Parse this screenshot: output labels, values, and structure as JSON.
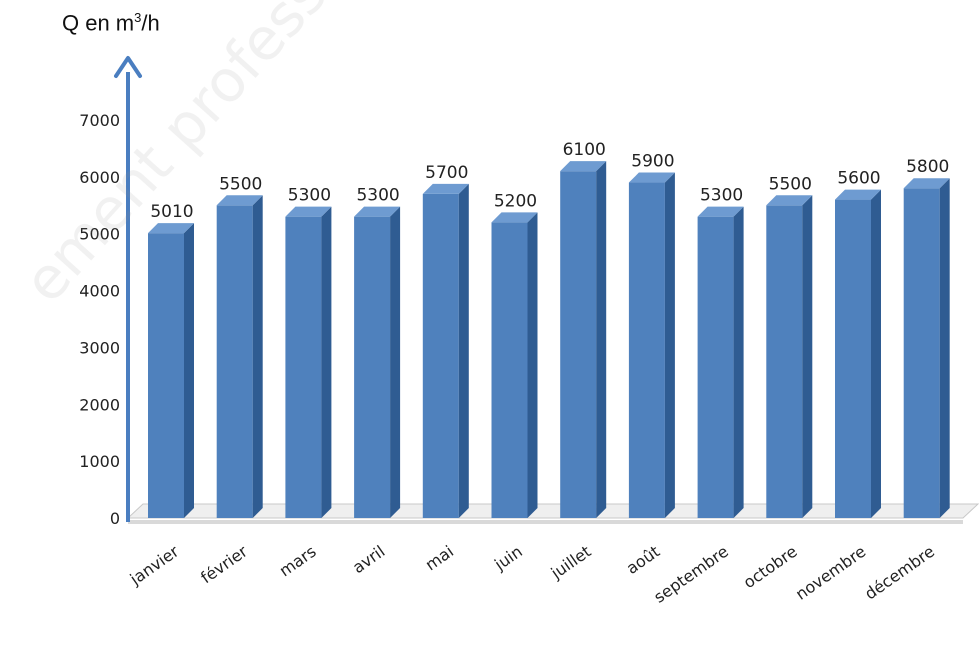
{
  "chart_data": {
    "type": "bar",
    "title": "",
    "ylabel": {
      "main": "Q en m",
      "sup": "3",
      "tail": "/h"
    },
    "xlabel": "",
    "ylim": [
      0,
      7000
    ],
    "yticks": [
      0,
      1000,
      2000,
      3000,
      4000,
      5000,
      6000,
      7000
    ],
    "categories": [
      "janvier",
      "février",
      "mars",
      "avril",
      "mai",
      "juin",
      "juillet",
      "août",
      "septembre",
      "octobre",
      "novembre",
      "décembre"
    ],
    "values": [
      5010,
      5500,
      5300,
      5300,
      5700,
      5200,
      6100,
      5900,
      5300,
      5500,
      5600,
      5800
    ],
    "data_labels": [
      "5010",
      "5500",
      "5300",
      "5300",
      "5700",
      "5200",
      "6100",
      "5900",
      "5300",
      "5500",
      "5600",
      "5800"
    ],
    "style": "3d-column",
    "grid": false,
    "legend": "none",
    "colors": {
      "bar_front": "#4F81BD",
      "bar_side": "#2F5C92",
      "bar_top": "#6E9BD1",
      "axis_arrow": "#4A7EC0",
      "floor": "#D9D9D9"
    }
  },
  "watermark": "ement professionnel"
}
